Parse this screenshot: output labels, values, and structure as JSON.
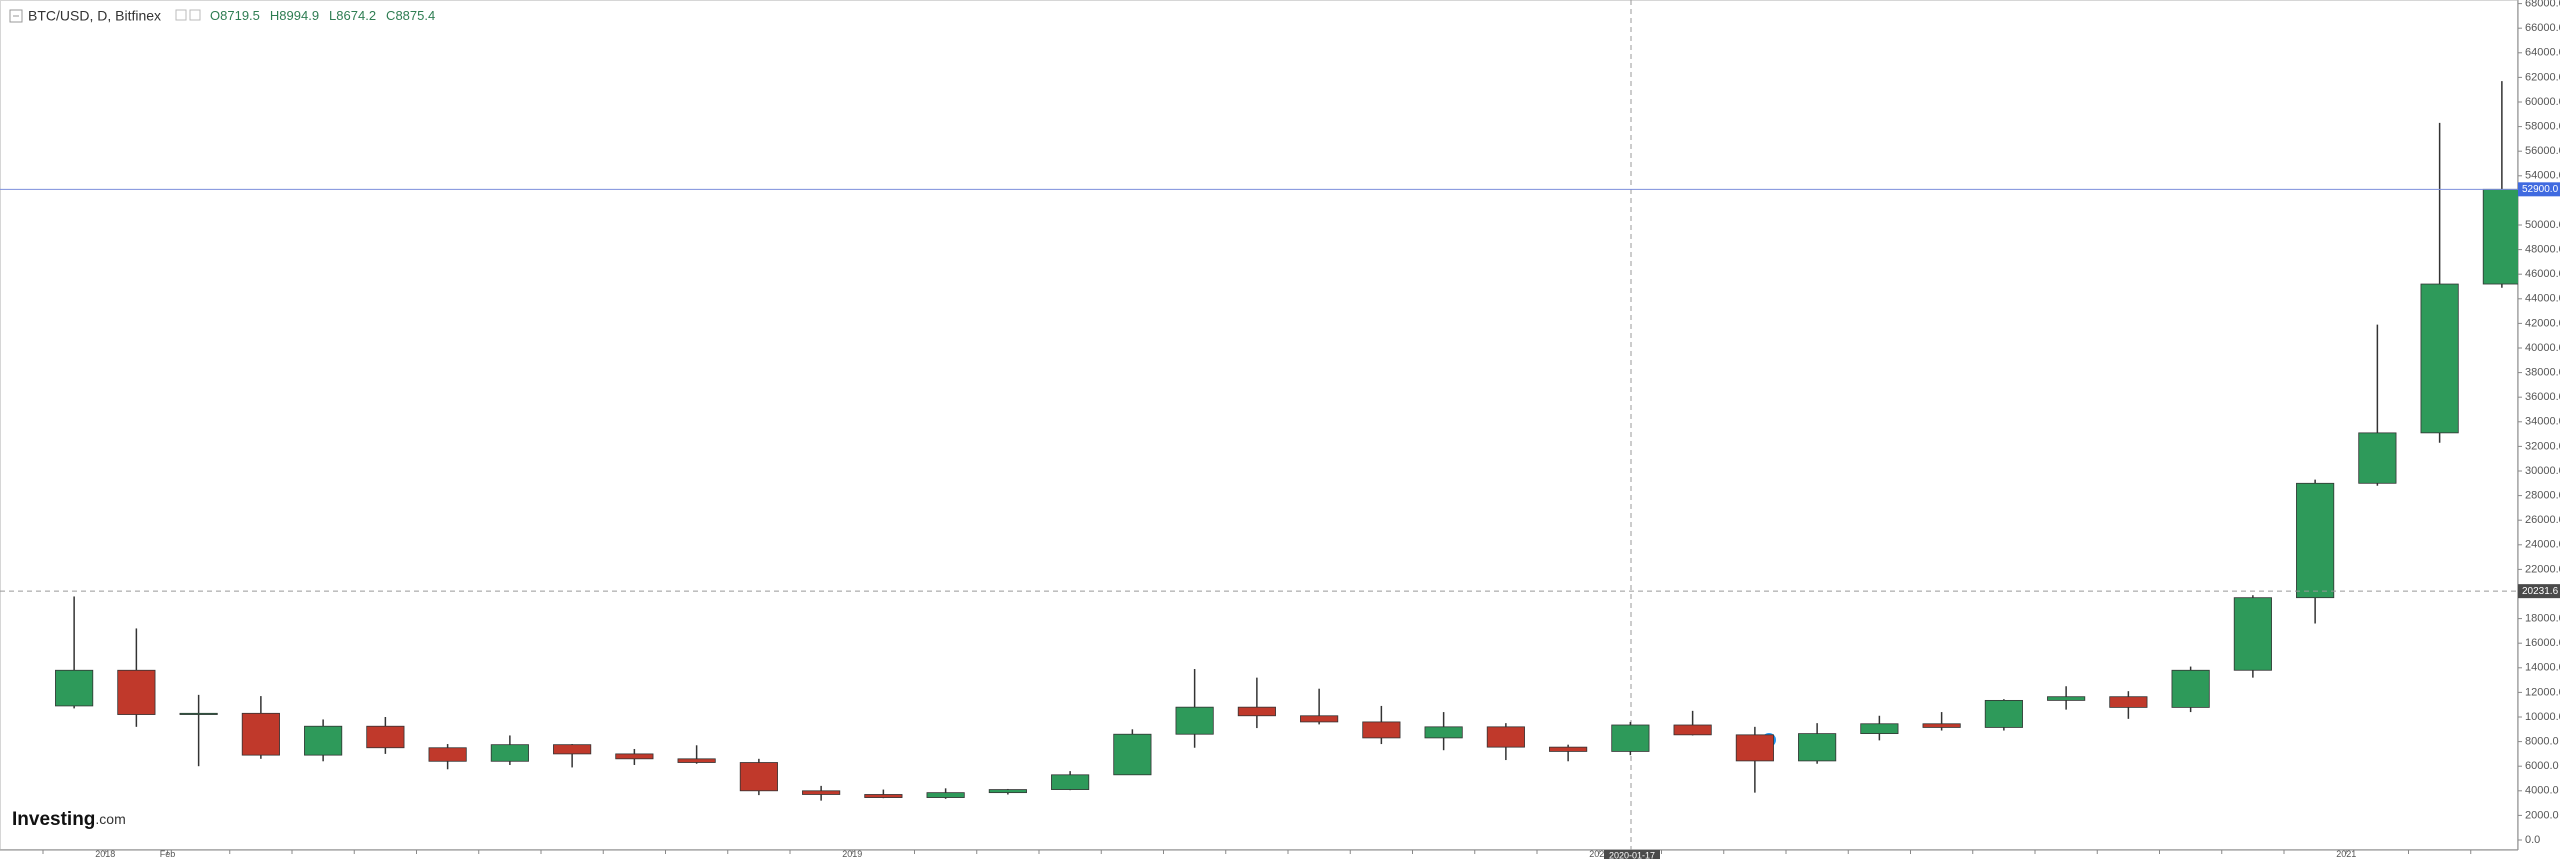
{
  "chart_data": {
    "type": "candlestick",
    "title": "BTC/USD, D, Bitfinex",
    "ohlc_header": [
      {
        "key": "O",
        "value": 8719.5
      },
      {
        "key": "H",
        "value": 8994.9
      },
      {
        "key": "L",
        "value": 8674.2
      },
      {
        "key": "C",
        "value": 8875.4
      }
    ],
    "watermark": {
      "brand": "Investing",
      "suffix": ".com"
    },
    "categories": [
      null,
      "2018",
      "Feb",
      null,
      null,
      null,
      null,
      null,
      null,
      null,
      null,
      null,
      null,
      "2019",
      null,
      null,
      null,
      null,
      null,
      null,
      null,
      null,
      null,
      null,
      null,
      "2020",
      null,
      null,
      null,
      null,
      null,
      null,
      null,
      null,
      null,
      null,
      null,
      "2021",
      null,
      null
    ],
    "open": [
      10900,
      13800,
      10200,
      10300,
      6900,
      9250,
      7500,
      6400,
      7750,
      7000,
      6600,
      6300,
      4000,
      3700,
      3450,
      3850,
      4100,
      5300,
      8600,
      10800,
      10100,
      9600,
      8300,
      9200,
      7550,
      7200,
      9350,
      8550,
      6430,
      8650,
      9450,
      9150,
      11350,
      11650,
      10780,
      13800,
      19700,
      29000,
      33100,
      45200
    ],
    "high": [
      19800,
      17200,
      11800,
      11700,
      9800,
      10000,
      7800,
      8500,
      7800,
      7400,
      7700,
      6600,
      4400,
      4100,
      4200,
      4150,
      5600,
      9000,
      13900,
      13200,
      12300,
      10900,
      10400,
      9500,
      7750,
      9600,
      10500,
      9200,
      9500,
      10100,
      10400,
      11450,
      12500,
      12100,
      14100,
      19900,
      29300,
      41900,
      58300,
      61700
    ],
    "low": [
      10700,
      9200,
      6000,
      6600,
      6400,
      7000,
      5750,
      6100,
      5900,
      6100,
      6200,
      3650,
      3200,
      3400,
      3350,
      3700,
      4050,
      5300,
      7500,
      9100,
      9400,
      7800,
      7300,
      6500,
      6400,
      6900,
      8500,
      3850,
      6200,
      8100,
      8900,
      8900,
      10600,
      9850,
      10400,
      13200,
      17600,
      28800,
      32300,
      44900
    ],
    "close": [
      13800,
      10200,
      10300,
      6900,
      9250,
      7500,
      6400,
      7750,
      7000,
      6600,
      6300,
      4000,
      3700,
      3450,
      3850,
      4100,
      5300,
      8600,
      10800,
      10100,
      9600,
      8300,
      9200,
      7550,
      7200,
      9350,
      8550,
      6430,
      8650,
      9450,
      9150,
      11350,
      11650,
      10780,
      13800,
      19700,
      29000,
      33100,
      45200,
      52900
    ],
    "up_color": "#2e9a5a",
    "down_color": "#c0392b",
    "last_price": {
      "value": 52900,
      "label": "52900.0"
    },
    "crosshair_price": {
      "value": 20231.6,
      "label": "20231.6"
    },
    "crosshair_date": "2020-01-17",
    "ylim": [
      -813,
      68292
    ],
    "yticks": [
      {
        "value": 0,
        "label": "0.0"
      },
      {
        "value": 2000,
        "label": "2000.0"
      },
      {
        "value": 4000,
        "label": "4000.0"
      },
      {
        "value": 6000,
        "label": "6000.0"
      },
      {
        "value": 8000,
        "label": "8000.0"
      },
      {
        "value": 10000,
        "label": "10000.0"
      },
      {
        "value": 12000,
        "label": "12000.0"
      },
      {
        "value": 14000,
        "label": "14000.0"
      },
      {
        "value": 16000,
        "label": "16000.0"
      },
      {
        "value": 18000,
        "label": "18000.0"
      },
      {
        "value": 22000,
        "label": "22000.0"
      },
      {
        "value": 24000,
        "label": "24000.0"
      },
      {
        "value": 26000,
        "label": "26000.0"
      },
      {
        "value": 28000,
        "label": "28000.0"
      },
      {
        "value": 30000,
        "label": "30000.0"
      },
      {
        "value": 32000,
        "label": "32000.0"
      },
      {
        "value": 34000,
        "label": "34000.0"
      },
      {
        "value": 36000,
        "label": "36000.0"
      },
      {
        "value": 38000,
        "label": "38000.0"
      },
      {
        "value": 40000,
        "label": "40000.0"
      },
      {
        "value": 42000,
        "label": "42000.0"
      },
      {
        "value": 44000,
        "label": "44000.0"
      },
      {
        "value": 46000,
        "label": "46000.0"
      },
      {
        "value": 48000,
        "label": "48000.0"
      },
      {
        "value": 50000,
        "label": "50000.0"
      },
      {
        "value": 54000,
        "label": "54000.0"
      },
      {
        "value": 56000,
        "label": "56000.0"
      },
      {
        "value": 58000,
        "label": "58000.0"
      },
      {
        "value": 60000,
        "label": "60000.0"
      },
      {
        "value": 62000,
        "label": "62000.0"
      },
      {
        "value": 64000,
        "label": "64000.0"
      },
      {
        "value": 66000,
        "label": "66000.0"
      },
      {
        "value": 68000,
        "label": "68000.0"
      }
    ]
  }
}
